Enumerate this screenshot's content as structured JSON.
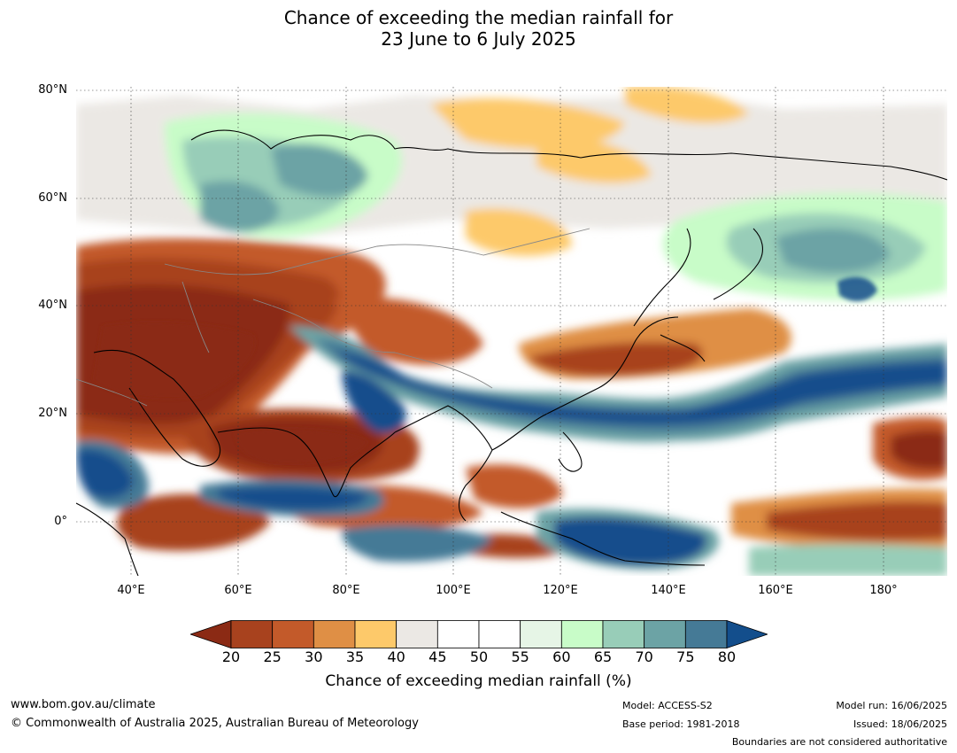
{
  "title": {
    "line1": "Chance of exceeding the median rainfall for",
    "line2": "23 June to 6 July 2025"
  },
  "axes": {
    "lat_labels": [
      "80°N",
      "60°N",
      "40°N",
      "20°N",
      "0°"
    ],
    "lon_labels": [
      "40°E",
      "60°E",
      "80°E",
      "100°E",
      "120°E",
      "140°E",
      "160°E",
      "180°"
    ]
  },
  "colorbar": {
    "ticks": [
      "20",
      "25",
      "30",
      "35",
      "40",
      "45",
      "50",
      "55",
      "60",
      "65",
      "70",
      "75",
      "80"
    ],
    "colors": [
      "#8b2a14",
      "#a8421e",
      "#c35a2a",
      "#df8f45",
      "#fdc96a",
      "#ebe8e4",
      "#ffffff",
      "#ffffff",
      "#e6f5e6",
      "#c8fcc8",
      "#98cdb8",
      "#6ca3a5",
      "#457a96",
      "#134e8c"
    ],
    "title": "Chance of exceeding median rainfall (%)"
  },
  "footer": {
    "website": "www.bom.gov.au/climate",
    "copyright": "© Commonwealth of Australia 2025, Australian Bureau of Meteorology",
    "model": "Model: ACCESS-S2",
    "base_period": "Base period: 1981-2018",
    "model_run": "Model run: 16/06/2025",
    "issued": "Issued: 18/06/2025",
    "disclaimer": "Boundaries are not considered authoritative"
  }
}
